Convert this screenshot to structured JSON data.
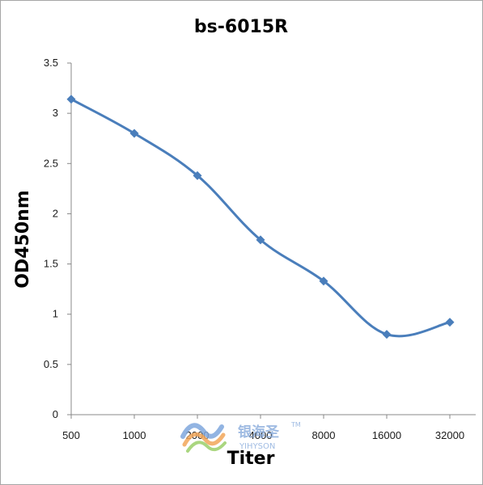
{
  "chart_data": {
    "type": "line",
    "title": "bs-6015R",
    "xlabel": "Titer",
    "ylabel": "OD450nm",
    "categories": [
      "500",
      "1000",
      "2000",
      "4000",
      "8000",
      "16000",
      "32000"
    ],
    "series": [
      {
        "values": [
          3.14,
          2.8,
          2.38,
          1.74,
          1.33,
          0.8,
          0.92
        ]
      }
    ],
    "ylim": [
      0,
      3.5
    ],
    "yticks": [
      "0",
      "0.5",
      "1",
      "1.5",
      "2",
      "2.5",
      "3",
      "3.5"
    ],
    "grid": false,
    "legend": "none",
    "line_color": "#4a7ebb",
    "marker": "diamond"
  },
  "watermark": {
    "cn": "银海圣",
    "en": "YIHYSON",
    "tm": "TM",
    "colors": [
      "#7fa7dd",
      "#f2a65a",
      "#9ccf6a"
    ]
  }
}
